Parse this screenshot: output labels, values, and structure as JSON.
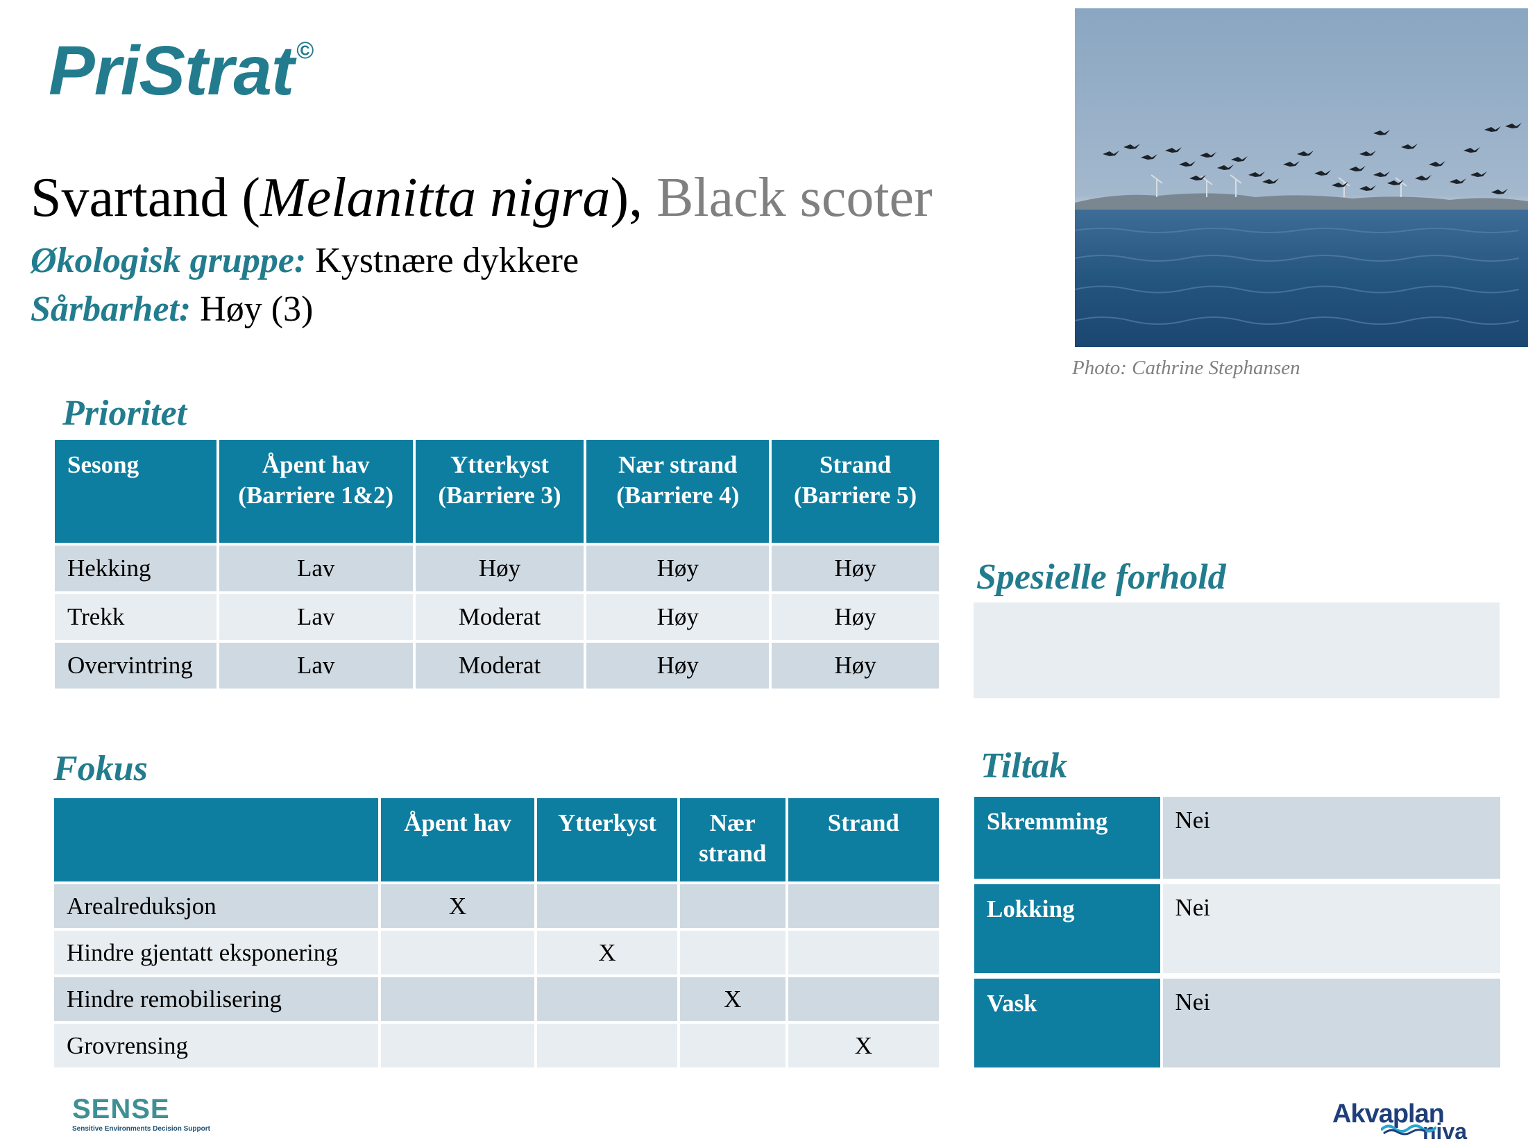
{
  "brand": {
    "name": "PriStrat",
    "mark": "©"
  },
  "species": {
    "norwegian": "Svartand (",
    "latin": "Melanitta nigra",
    "separator": "), ",
    "english": "Black scoter"
  },
  "ecology": {
    "label": "Økologisk gruppe:",
    "value": " Kystnære dykkere"
  },
  "vulnerability": {
    "label": "Sårbarhet:",
    "value": " Høy (3)"
  },
  "photo": {
    "credit": "Photo: Cathrine Stephansen"
  },
  "prioritet": {
    "heading": "Prioritet",
    "headers": [
      "Sesong",
      "Åpent hav (Barriere 1&2)",
      "Ytterkyst (Barriere 3)",
      "Nær strand (Barriere 4)",
      "Strand (Barriere 5)"
    ],
    "rows": [
      [
        "Hekking",
        "Lav",
        "Høy",
        "Høy",
        "Høy"
      ],
      [
        "Trekk",
        "Lav",
        "Moderat",
        "Høy",
        "Høy"
      ],
      [
        "Overvintring",
        "Lav",
        "Moderat",
        "Høy",
        "Høy"
      ]
    ]
  },
  "spesielle": {
    "heading": "Spesielle forhold"
  },
  "fokus": {
    "heading": "Fokus",
    "headers": [
      "",
      "Åpent hav",
      "Ytterkyst",
      "Nær strand",
      "Strand"
    ],
    "rows": [
      [
        "Arealreduksjon",
        "X",
        "",
        "",
        ""
      ],
      [
        "Hindre gjentatt eksponering",
        "",
        "X",
        "",
        ""
      ],
      [
        "Hindre remobilisering",
        "",
        "",
        "X",
        ""
      ],
      [
        "Grovrensing",
        "",
        "",
        "",
        "X"
      ]
    ]
  },
  "tiltak": {
    "heading": "Tiltak",
    "rows": [
      {
        "label": "Skremming",
        "value": "Nei"
      },
      {
        "label": "Lokking",
        "value": "Nei"
      },
      {
        "label": "Vask",
        "value": "Nei"
      }
    ]
  },
  "footer": {
    "sense": "SENSE",
    "sense_tagline": "Sensitive Environments Decision Support",
    "akvaplan": "Akvaplan",
    "niva": "niva"
  },
  "colors": {
    "accent": "#227c8e",
    "header_bg": "#0e7ea0",
    "row_dark": "#cfd9e1",
    "row_light": "#e8edf1"
  }
}
